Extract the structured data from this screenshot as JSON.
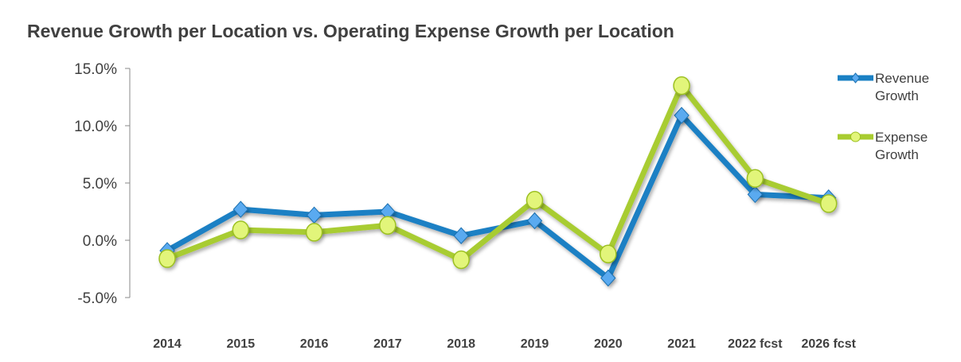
{
  "chart_data": {
    "type": "line",
    "title": "Revenue Growth per Location vs. Operating Expense Growth per Location",
    "xlabel": "",
    "ylabel": "",
    "categories": [
      "2014",
      "2015",
      "2016",
      "2017",
      "2018",
      "2019",
      "2020",
      "2021",
      "2022 fcst",
      "2026 fcst"
    ],
    "ylim": [
      -5,
      15
    ],
    "yticks": [
      "15.0%",
      "10.0%",
      "5.0%",
      "0.0%",
      "-5.0%"
    ],
    "ytick_values": [
      15,
      10,
      5,
      0,
      -5
    ],
    "grid": false,
    "legend_placement": "right",
    "series": [
      {
        "name": "Revenue Growth",
        "legend_lines": [
          "Revenue",
          "Growth"
        ],
        "color": "#1a80c4",
        "marker": "diamond",
        "marker_color": "#5aaaf0",
        "values": [
          -0.9,
          2.7,
          2.2,
          2.5,
          0.4,
          1.7,
          -3.3,
          10.9,
          4.0,
          3.7
        ]
      },
      {
        "name": "Expense Growth",
        "legend_lines": [
          "Expense",
          "Growth"
        ],
        "color": "#a8cc30",
        "marker": "circle",
        "marker_color": "#e2f57a",
        "values": [
          -1.6,
          0.9,
          0.7,
          1.3,
          -1.7,
          3.5,
          -1.2,
          13.5,
          5.4,
          3.2
        ]
      }
    ]
  }
}
